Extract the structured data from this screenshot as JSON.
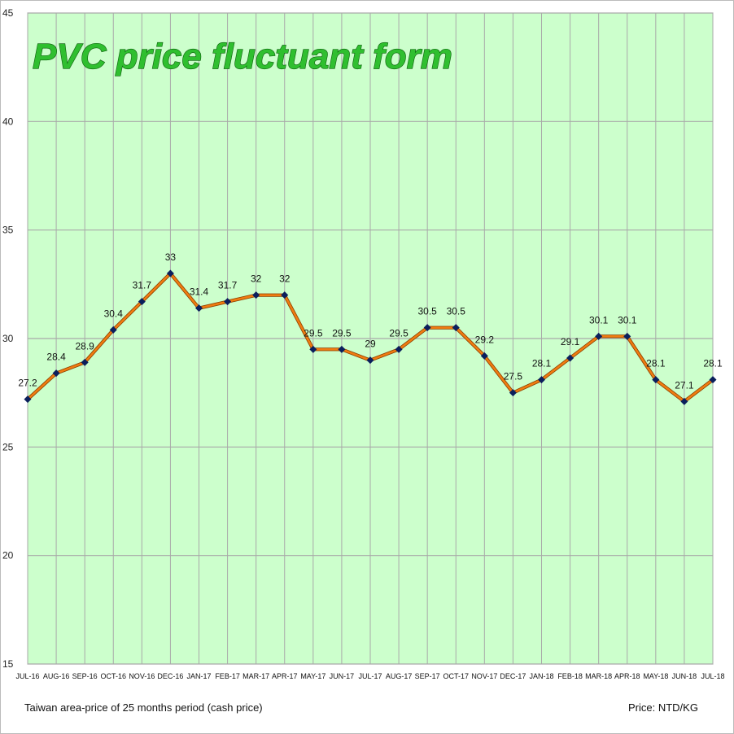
{
  "chart_data": {
    "type": "line",
    "title": "PVC price fluctuant form",
    "categories": [
      "JUL-16",
      "AUG-16",
      "SEP-16",
      "OCT-16",
      "NOV-16",
      "DEC-16",
      "JAN-17",
      "FEB-17",
      "MAR-17",
      "APR-17",
      "MAY-17",
      "JUN-17",
      "JUL-17",
      "AUG-17",
      "SEP-17",
      "OCT-17",
      "NOV-17",
      "DEC-17",
      "JAN-18",
      "FEB-18",
      "MAR-18",
      "APR-18",
      "MAY-18",
      "JUN-18",
      "JUL-18"
    ],
    "series": [
      {
        "values": [
          27.2,
          28.4,
          28.9,
          30.4,
          31.7,
          33,
          31.4,
          31.7,
          32,
          32,
          29.5,
          29.5,
          29,
          29.5,
          30.5,
          30.5,
          29.2,
          27.5,
          28.1,
          29.1,
          30.1,
          30.1,
          28.1,
          27.1,
          28.1
        ]
      }
    ],
    "data_labels": [
      "27.2",
      "28.4",
      "28.9",
      "30.4",
      "31.7",
      "33",
      "31.4",
      "31.7",
      "32",
      "32",
      "29.5",
      "29.5",
      "29",
      "29.5",
      "30.5",
      "30.5",
      "29.2",
      "27.5",
      "28.1",
      "29.1",
      "30.1",
      "30.1",
      "28.1",
      "27.1",
      "28.1"
    ],
    "yticks": [
      15,
      20,
      25,
      30,
      35,
      40,
      45
    ],
    "ylim": [
      15,
      45
    ],
    "grid": true,
    "xlabel": "",
    "ylabel": "",
    "colors": {
      "plot_background": "#ccffcc",
      "grid": "#a9a9a9",
      "line": "#f07c10",
      "marker": "#0b1f5c",
      "title_fill": "#2fbf2f"
    }
  },
  "footer": {
    "left": "Taiwan area-price of 25 months period (cash price)",
    "right": "Price: NTD/KG"
  }
}
